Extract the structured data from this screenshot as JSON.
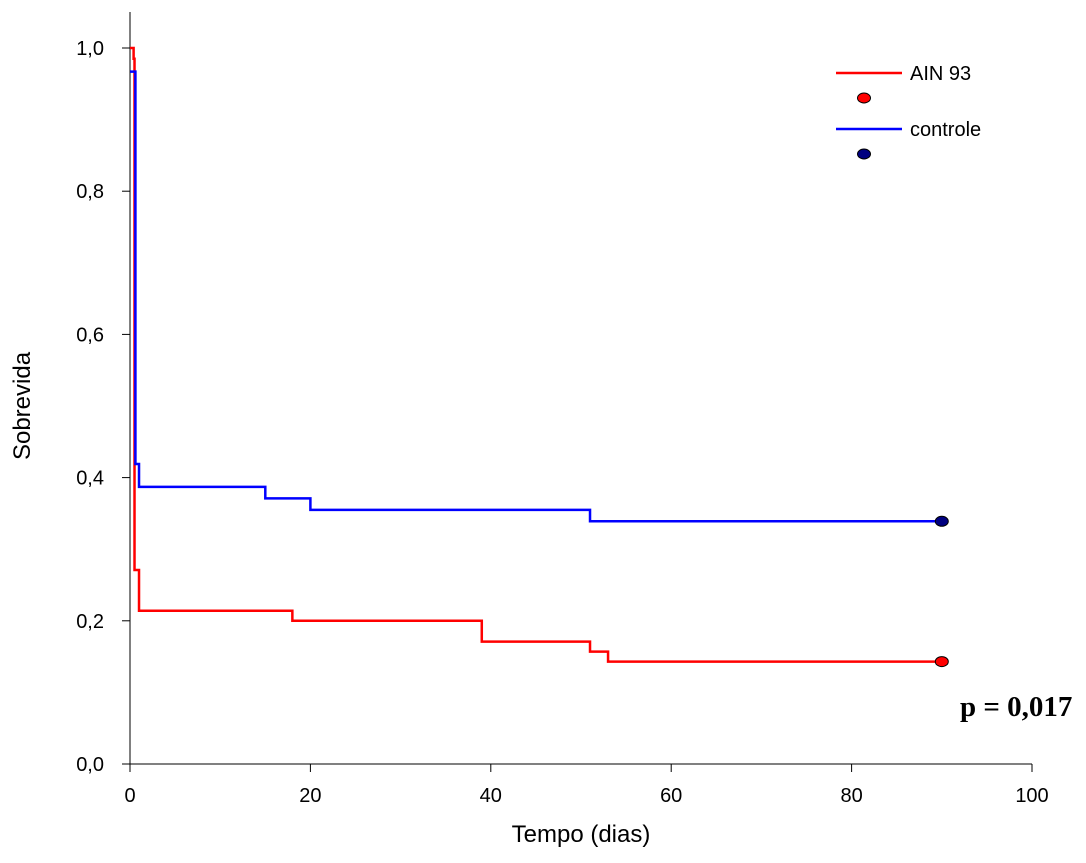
{
  "chart_data": {
    "type": "line",
    "title": "",
    "xlabel": "Tempo (dias)",
    "ylabel": "Sobrevida",
    "xlim": [
      0,
      100
    ],
    "ylim": [
      0,
      1
    ],
    "x_ticks": [
      0,
      20,
      40,
      60,
      80,
      100
    ],
    "y_ticks": [
      0,
      0.2,
      0.4,
      0.6,
      0.8,
      1.0
    ],
    "x_tick_labels": [
      "0",
      "20",
      "40",
      "60",
      "80",
      "100"
    ],
    "y_tick_labels": [
      "0,0",
      "0,2",
      "0,4",
      "0,6",
      "0,8",
      "1,0"
    ],
    "grid": false,
    "legend": "top-right",
    "step": true,
    "series": [
      {
        "name": "AIN 93",
        "color": "#ff0000",
        "marker_color": "#ff0000",
        "x": [
          0,
          0.4,
          0.5,
          1.0,
          18,
          39,
          51,
          53,
          90
        ],
        "y": [
          1.0,
          0.985,
          0.271,
          0.214,
          0.2,
          0.171,
          0.157,
          0.143,
          0.143
        ],
        "censor_x": 90,
        "censor_y": 0.143
      },
      {
        "name": "controle",
        "color": "#0000ff",
        "marker_color": "#000080",
        "x": [
          0,
          0.6,
          1.0,
          15,
          20,
          51,
          90
        ],
        "y": [
          0.967,
          0.419,
          0.387,
          0.371,
          0.355,
          0.339,
          0.339
        ],
        "censor_x": 90,
        "censor_y": 0.339
      }
    ],
    "annotation": "p = 0,017"
  }
}
